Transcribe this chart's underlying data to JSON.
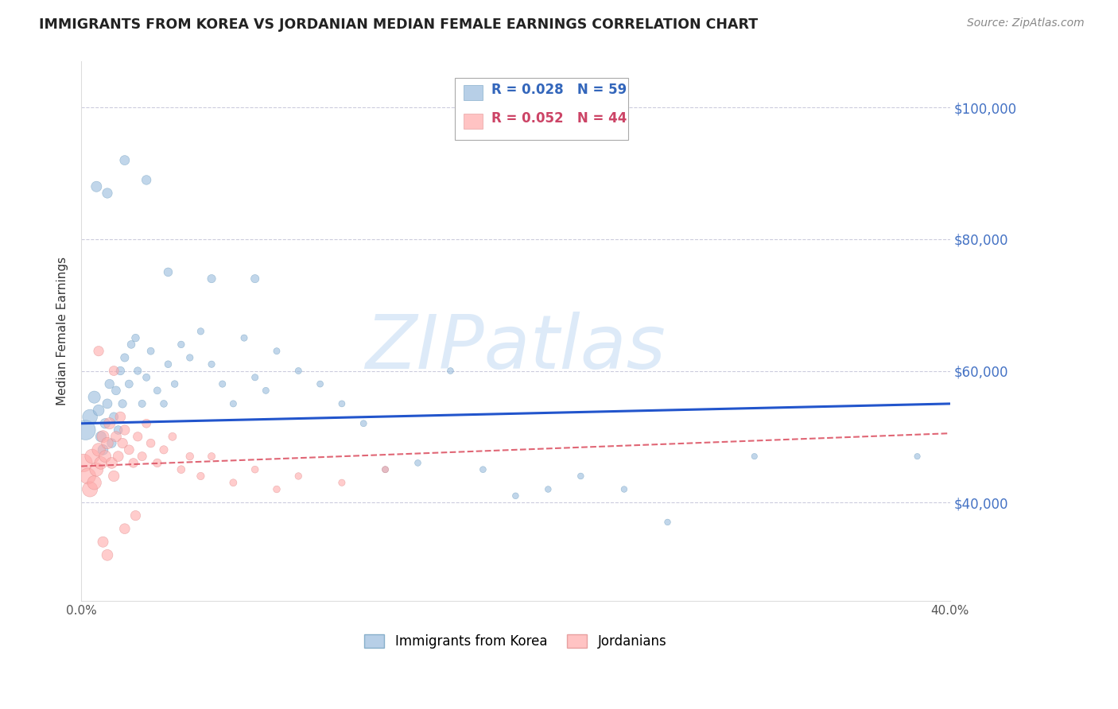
{
  "title": "IMMIGRANTS FROM KOREA VS JORDANIAN MEDIAN FEMALE EARNINGS CORRELATION CHART",
  "source": "Source: ZipAtlas.com",
  "ylabel": "Median Female Earnings",
  "yticks": [
    40000,
    60000,
    80000,
    100000
  ],
  "ytick_labels": [
    "$40,000",
    "$60,000",
    "$80,000",
    "$100,000"
  ],
  "xlim": [
    0.0,
    0.4
  ],
  "ylim": [
    25000,
    107000
  ],
  "blue_R": "R = 0.028",
  "blue_N": "N = 59",
  "pink_R": "R = 0.052",
  "pink_N": "N = 44",
  "blue_color": "#99BBDD",
  "pink_color": "#FFAAAA",
  "blue_edge": "#6699BB",
  "pink_edge": "#DD8888",
  "trend_blue": "#2255CC",
  "trend_pink": "#DD5566",
  "watermark": "ZIPatlas",
  "legend_label_blue": "Immigrants from Korea",
  "legend_label_pink": "Jordanians",
  "blue_trend_y0": 52000,
  "blue_trend_y1": 55000,
  "pink_trend_y0": 45500,
  "pink_trend_y1": 50500,
  "blue_x": [
    0.002,
    0.004,
    0.006,
    0.008,
    0.009,
    0.01,
    0.011,
    0.012,
    0.013,
    0.014,
    0.015,
    0.016,
    0.017,
    0.018,
    0.019,
    0.02,
    0.022,
    0.023,
    0.025,
    0.026,
    0.028,
    0.03,
    0.032,
    0.035,
    0.038,
    0.04,
    0.043,
    0.046,
    0.05,
    0.055,
    0.06,
    0.065,
    0.07,
    0.075,
    0.08,
    0.085,
    0.09,
    0.1,
    0.11,
    0.12,
    0.13,
    0.14,
    0.155,
    0.17,
    0.185,
    0.2,
    0.215,
    0.23,
    0.25,
    0.27,
    0.007,
    0.012,
    0.02,
    0.03,
    0.04,
    0.06,
    0.08,
    0.31,
    0.385
  ],
  "blue_y": [
    51000,
    53000,
    56000,
    54000,
    50000,
    48000,
    52000,
    55000,
    58000,
    49000,
    53000,
    57000,
    51000,
    60000,
    55000,
    62000,
    58000,
    64000,
    65000,
    60000,
    55000,
    59000,
    63000,
    57000,
    55000,
    61000,
    58000,
    64000,
    62000,
    66000,
    61000,
    58000,
    55000,
    65000,
    59000,
    57000,
    63000,
    60000,
    58000,
    55000,
    52000,
    45000,
    46000,
    60000,
    45000,
    41000,
    42000,
    44000,
    42000,
    37000,
    88000,
    87000,
    92000,
    89000,
    75000,
    74000,
    74000,
    47000,
    47000
  ],
  "blue_size": [
    320,
    180,
    120,
    100,
    90,
    85,
    80,
    75,
    70,
    68,
    65,
    62,
    60,
    58,
    56,
    55,
    52,
    50,
    48,
    46,
    44,
    43,
    42,
    42,
    40,
    40,
    39,
    38,
    37,
    37,
    36,
    36,
    35,
    35,
    35,
    34,
    34,
    34,
    33,
    33,
    33,
    32,
    32,
    32,
    32,
    31,
    31,
    31,
    30,
    30,
    90,
    80,
    75,
    70,
    60,
    55,
    55,
    28,
    28
  ],
  "pink_x": [
    0.001,
    0.003,
    0.004,
    0.005,
    0.006,
    0.007,
    0.008,
    0.009,
    0.01,
    0.011,
    0.012,
    0.013,
    0.014,
    0.015,
    0.016,
    0.017,
    0.018,
    0.019,
    0.02,
    0.022,
    0.024,
    0.026,
    0.028,
    0.03,
    0.032,
    0.035,
    0.038,
    0.042,
    0.046,
    0.05,
    0.055,
    0.06,
    0.07,
    0.08,
    0.09,
    0.1,
    0.12,
    0.14,
    0.008,
    0.015,
    0.01,
    0.02,
    0.025,
    0.012
  ],
  "pink_y": [
    46000,
    44000,
    42000,
    47000,
    43000,
    45000,
    48000,
    46000,
    50000,
    47000,
    49000,
    52000,
    46000,
    44000,
    50000,
    47000,
    53000,
    49000,
    51000,
    48000,
    46000,
    50000,
    47000,
    52000,
    49000,
    46000,
    48000,
    50000,
    45000,
    47000,
    44000,
    47000,
    43000,
    45000,
    42000,
    44000,
    43000,
    45000,
    63000,
    60000,
    34000,
    36000,
    38000,
    32000
  ],
  "pink_size": [
    260,
    210,
    190,
    170,
    160,
    150,
    140,
    130,
    120,
    115,
    110,
    105,
    100,
    95,
    90,
    88,
    85,
    82,
    80,
    75,
    70,
    68,
    65,
    62,
    60,
    58,
    55,
    52,
    50,
    48,
    46,
    44,
    42,
    40,
    39,
    38,
    36,
    35,
    80,
    75,
    90,
    85,
    80,
    100
  ]
}
